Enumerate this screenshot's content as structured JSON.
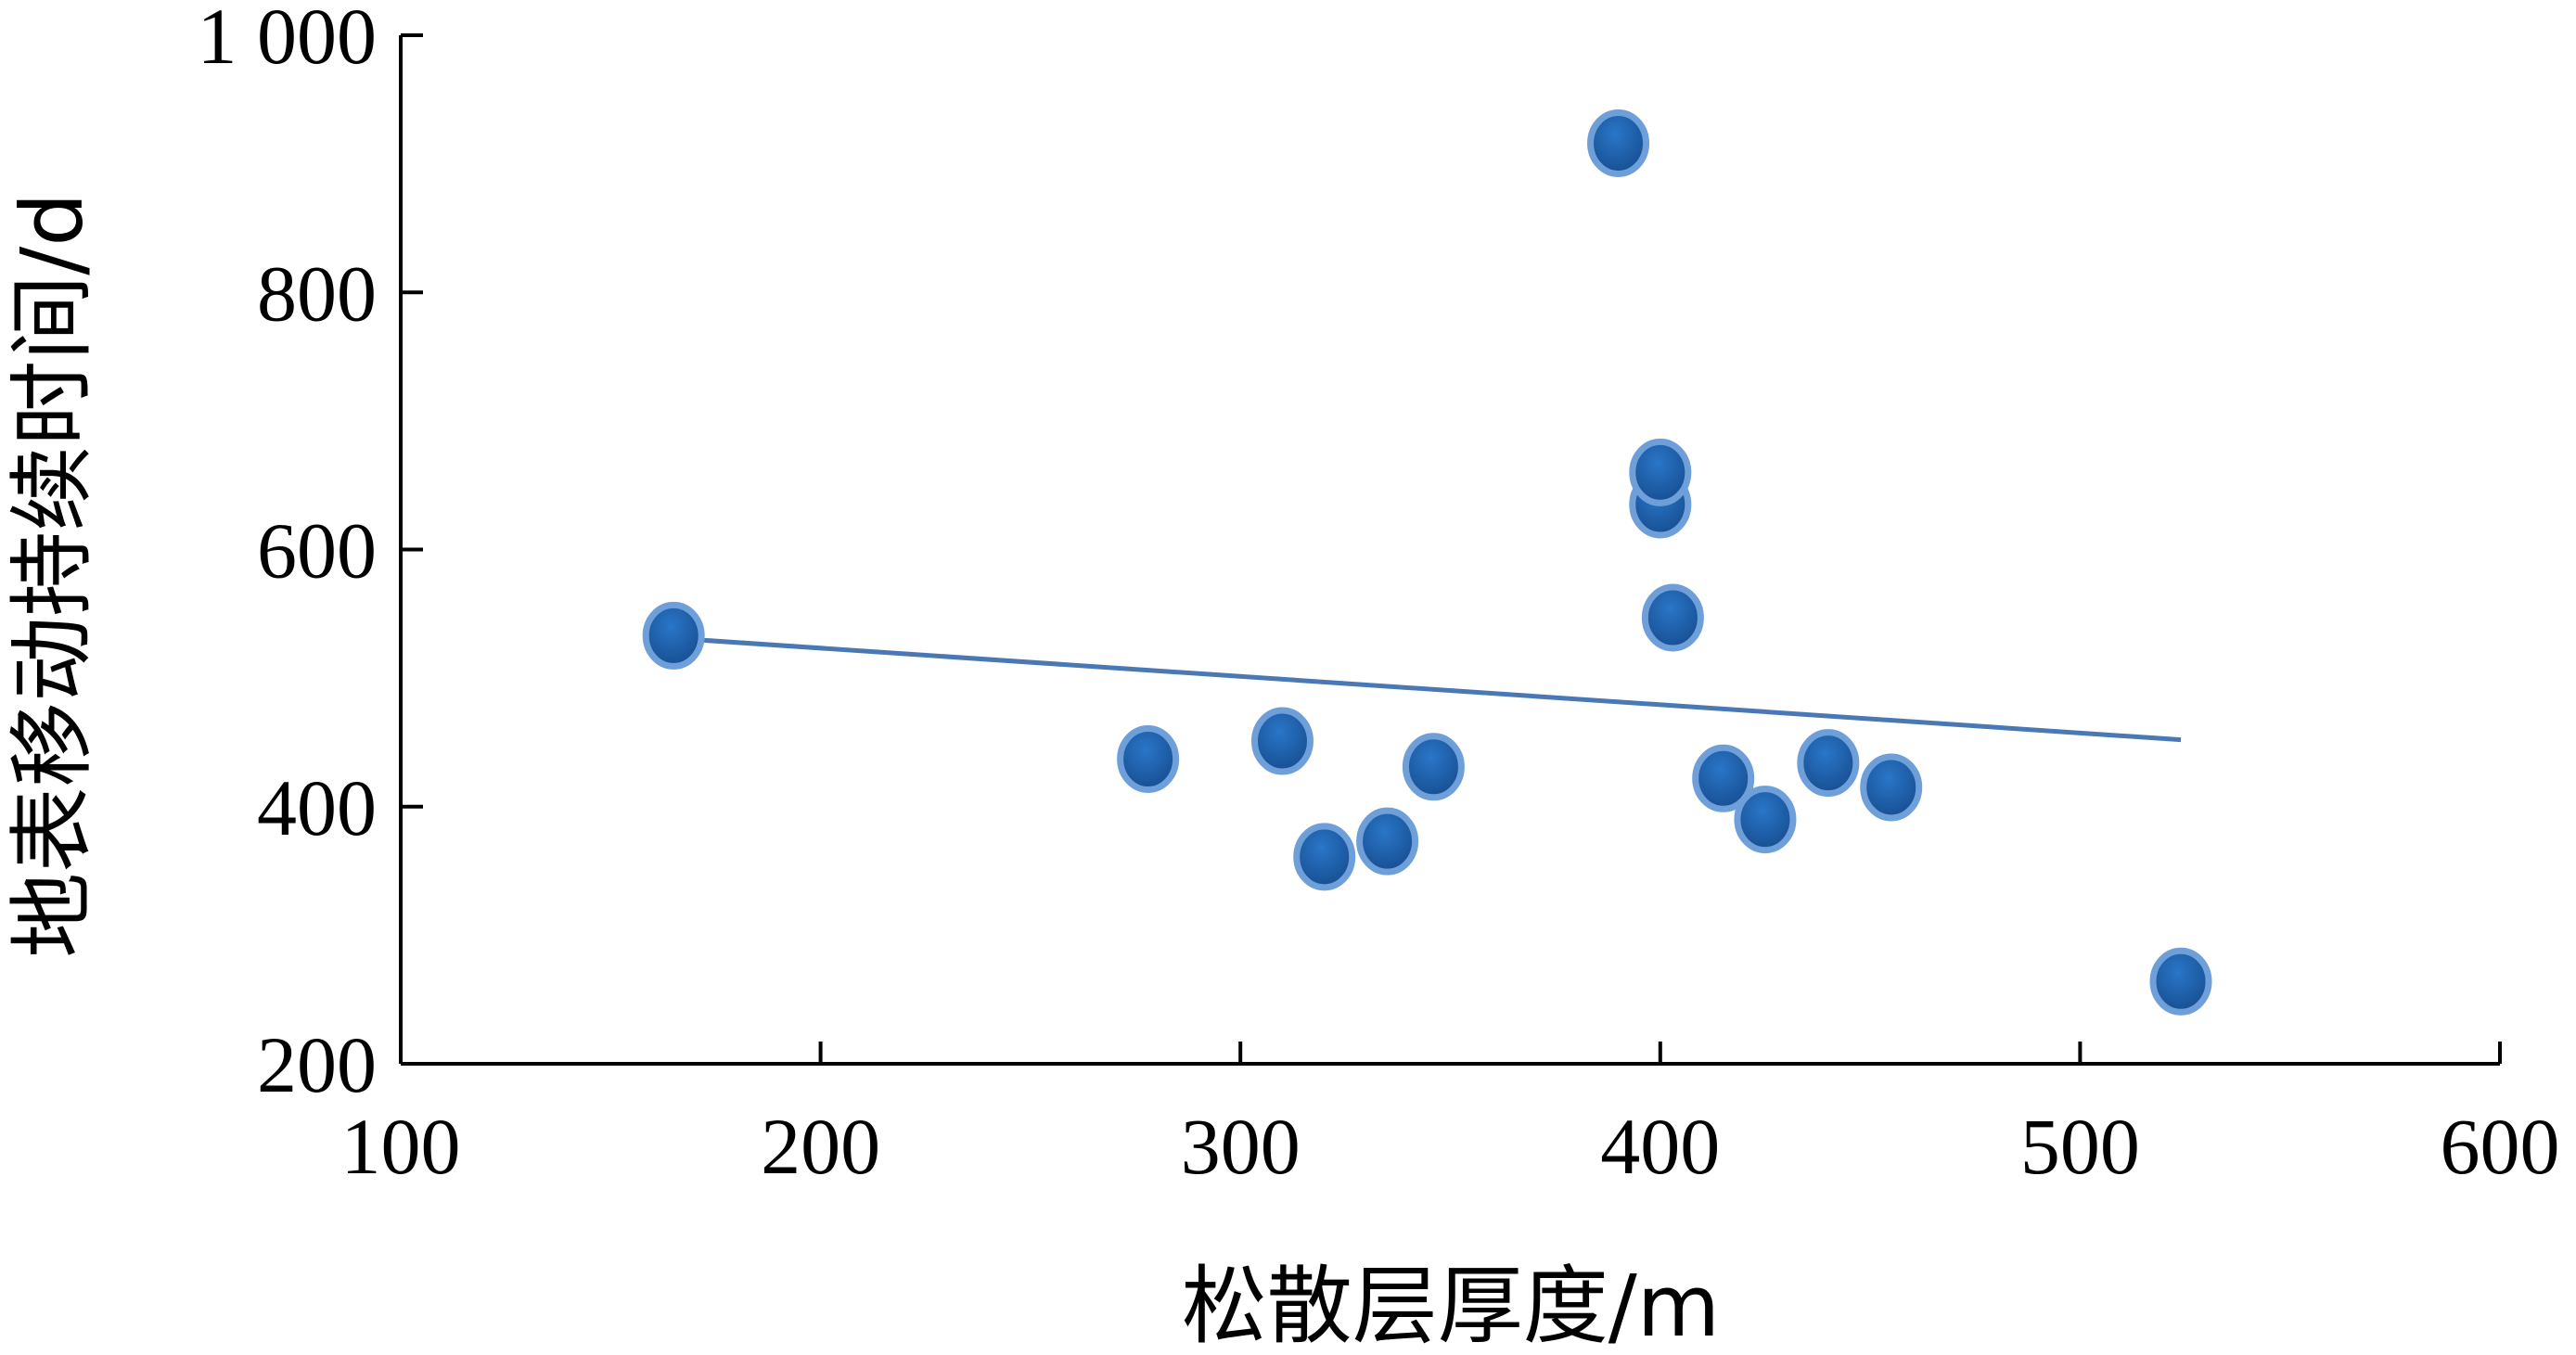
{
  "chart_data": {
    "type": "scatter",
    "xlabel": "松散层厚度/m",
    "ylabel": "地表移动持续时间/d",
    "xlim": [
      100,
      600
    ],
    "ylim": [
      200,
      1000
    ],
    "x_ticks": [
      100,
      200,
      300,
      400,
      500,
      600
    ],
    "x_tick_labels": [
      "100",
      "200",
      "300",
      "400",
      "500",
      "600"
    ],
    "y_ticks": [
      200,
      400,
      600,
      800,
      1000
    ],
    "y_tick_labels": [
      "200",
      "400",
      "600",
      "800",
      "1 000"
    ],
    "grid": false,
    "legend": "none",
    "points": [
      {
        "x": 165,
        "y": 533
      },
      {
        "x": 278,
        "y": 437
      },
      {
        "x": 310,
        "y": 451
      },
      {
        "x": 320,
        "y": 361
      },
      {
        "x": 335,
        "y": 373
      },
      {
        "x": 346,
        "y": 431
      },
      {
        "x": 390,
        "y": 916
      },
      {
        "x": 400,
        "y": 635
      },
      {
        "x": 400,
        "y": 660
      },
      {
        "x": 403,
        "y": 547
      },
      {
        "x": 415,
        "y": 422
      },
      {
        "x": 425,
        "y": 390
      },
      {
        "x": 440,
        "y": 434
      },
      {
        "x": 455,
        "y": 415
      },
      {
        "x": 524,
        "y": 264
      }
    ],
    "trendline": {
      "x": [
        165,
        524
      ],
      "y": [
        531,
        452
      ]
    },
    "colors": {
      "marker_fill": "#1f5fa8",
      "marker_edge": "#6f9fd8",
      "trendline": "#4a78b5",
      "axis": "#000000"
    }
  }
}
